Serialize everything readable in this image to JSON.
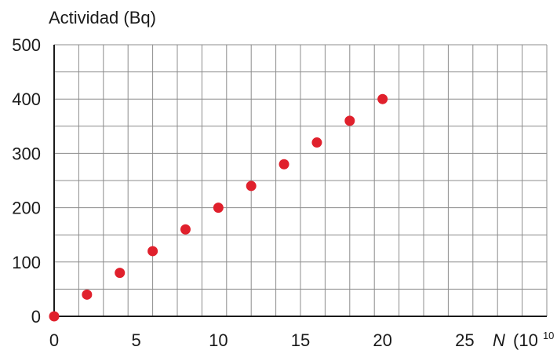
{
  "chart_data": {
    "type": "scatter",
    "ylabel": "Actividad (Bq)",
    "xlabel_main": "N",
    "xlabel_unit_base": "(10",
    "xlabel_unit_exp": "10",
    "xlabel_unit_close": ")",
    "xlim": [
      0,
      30
    ],
    "ylim": [
      0,
      500
    ],
    "x_ticks": [
      "0",
      "5",
      "10",
      "15",
      "20",
      "25"
    ],
    "y_ticks": [
      "0",
      "100",
      "200",
      "300",
      "400",
      "500"
    ],
    "grid": true,
    "x_minor_step": 1.5,
    "y_minor_step": 50,
    "point_color": "#e0202c",
    "x": [
      0,
      2,
      4,
      6,
      8,
      10,
      12,
      14,
      16,
      18,
      20
    ],
    "y": [
      0,
      40,
      80,
      120,
      160,
      200,
      240,
      280,
      320,
      360,
      400
    ]
  }
}
